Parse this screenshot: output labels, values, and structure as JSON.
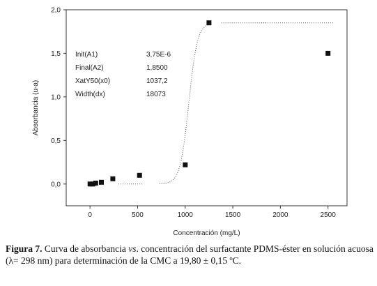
{
  "chart_data": {
    "type": "scatter",
    "xlabel": "Concentración (mg/L)",
    "ylabel": "Absorbancia (u-a)",
    "xlim": [
      -250,
      2700
    ],
    "ylim": [
      -0.25,
      2.0
    ],
    "x_ticks": [
      0,
      500,
      1000,
      1500,
      2000,
      2500
    ],
    "x_tick_labels": [
      "0",
      "500",
      "1000",
      "1500",
      "2000",
      "2500"
    ],
    "y_ticks": [
      0.0,
      0.5,
      1.0,
      1.5,
      2.0
    ],
    "y_tick_labels": [
      "0,0",
      "0,5",
      "1,0",
      "1,5",
      "2,0"
    ],
    "grid": false,
    "series": [
      {
        "marker": "square",
        "x": [
          0,
          30,
          60,
          120,
          240,
          520,
          1000,
          1250,
          2500
        ],
        "y": [
          0.0,
          0.0,
          0.01,
          0.02,
          0.06,
          0.1,
          0.22,
          1.85,
          1.5
        ]
      }
    ],
    "fit": {
      "type": "boltzmann",
      "style": "dotted",
      "A1": 3.75e-06,
      "A2": 1.85,
      "x0": 1037.2,
      "dx": 18073,
      "segments": [
        [
          300,
          550
        ],
        [
          730,
          1250
        ],
        [
          1380,
          1850
        ],
        [
          1800,
          2800
        ]
      ]
    },
    "annotations": [
      {
        "label": "Init(A1)",
        "value": "3,75E-6"
      },
      {
        "label": "Final(A2)",
        "value": "1,8500"
      },
      {
        "label": "XatY50(x0)",
        "value": "1037,2"
      },
      {
        "label": "Width(dx)",
        "value": "18073"
      }
    ]
  },
  "caption": {
    "label": "Figura 7.",
    "text_before": " Curva de absorbancia ",
    "vs": "vs",
    "text_after": ". concentración del surfactante PDMS-éster en solución acuosa (λ= 298 nm) para determinación de la CMC a 19,80 ± 0,15 ºC."
  }
}
